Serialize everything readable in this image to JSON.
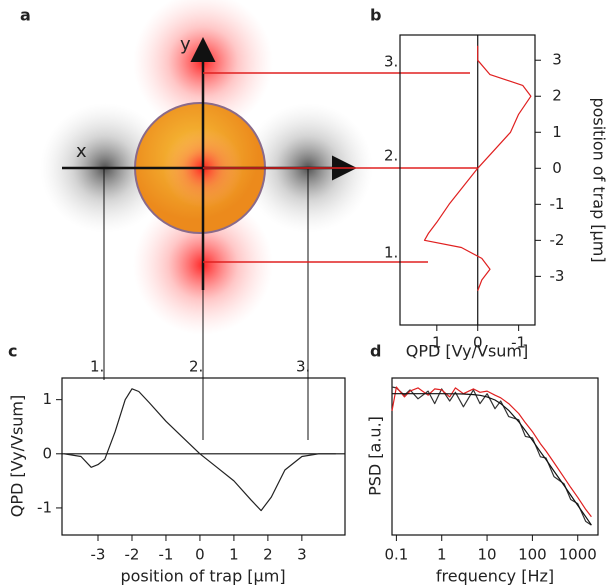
{
  "diagram": {
    "panel_labels": [
      "a",
      "b",
      "c",
      "d"
    ],
    "axis_x": "x",
    "axis_y": "y",
    "markers": [
      "1.",
      "2.",
      "3."
    ]
  },
  "chart_data": [
    {
      "type": "line",
      "orientation": "vertical",
      "x": [
        -3.4,
        -3.1,
        -2.8,
        -2.5,
        -2.2,
        -2.0,
        -1.8,
        -1.5,
        -1.0,
        -0.5,
        0,
        0.5,
        1.0,
        1.5,
        2.0,
        2.3,
        2.6,
        3.0,
        3.4
      ],
      "values": [
        0,
        -0.1,
        -0.3,
        -0.1,
        0.4,
        1.3,
        1.2,
        1.0,
        0.7,
        0.35,
        0,
        -0.4,
        -0.8,
        -1.0,
        -1.3,
        -1.1,
        -0.3,
        0,
        0
      ],
      "color": "#e02020",
      "xlim": [
        -4.35,
        3.7
      ],
      "xticks": [
        -3,
        -2,
        -1,
        0,
        1,
        2,
        3
      ],
      "ylim": [
        1.9,
        -1.4
      ],
      "yticks": [
        1,
        0,
        -1
      ],
      "zero_line": true,
      "xlabel": "position of trap [µm]",
      "ylabel": "QPD [Vy/Vsum]"
    },
    {
      "type": "line",
      "x": [
        -4.0,
        -3.5,
        -3.2,
        -3.0,
        -2.8,
        -2.5,
        -2.2,
        -2.0,
        -1.8,
        -1.5,
        -1.0,
        -0.5,
        0,
        0.5,
        1.0,
        1.5,
        1.8,
        2.1,
        2.5,
        3.0,
        3.5,
        4.0
      ],
      "values": [
        0,
        -0.05,
        -0.25,
        -0.2,
        -0.1,
        0.4,
        1.0,
        1.2,
        1.15,
        0.95,
        0.6,
        0.3,
        0,
        -0.25,
        -0.5,
        -0.85,
        -1.05,
        -0.8,
        -0.3,
        -0.05,
        0,
        0
      ],
      "color": "#222222",
      "xlim": [
        -4.06,
        4.27
      ],
      "xticks": [
        -3,
        -2,
        -1,
        0,
        1,
        2,
        3
      ],
      "ylim": [
        -1.5,
        1.4
      ],
      "yticks": [
        -1,
        0,
        1
      ],
      "zero_line": true,
      "xlabel": "position of trap [µm]",
      "ylabel": "QPD [Vy/Vsum]"
    },
    {
      "type": "line",
      "log_x": true,
      "log_y": true,
      "x": [
        0.08,
        0.1,
        0.15,
        0.2,
        0.3,
        0.5,
        0.7,
        1,
        1.5,
        2,
        3,
        5,
        7,
        10,
        15,
        20,
        30,
        50,
        70,
        100,
        150,
        200,
        300,
        500,
        700,
        1000,
        1500,
        2000
      ],
      "series": [
        {
          "color": "#333333",
          "values": [
            1.6,
            1.5,
            0.9,
            1.3,
            0.7,
            1.2,
            0.5,
            1.4,
            0.6,
            1.1,
            0.4,
            1.3,
            0.5,
            1.0,
            0.35,
            0.6,
            0.2,
            0.16,
            0.05,
            0.045,
            0.012,
            0.011,
            0.003,
            0.0018,
            0.0006,
            0.00045,
            0.00013,
            0.0001
          ]
        },
        {
          "color": "#e02020",
          "values": [
            0.3,
            1.6,
            0.8,
            1.2,
            1.5,
            0.9,
            1.4,
            1.3,
            0.8,
            1.5,
            1.0,
            1.4,
            1.1,
            1.2,
            0.9,
            0.75,
            0.5,
            0.25,
            0.13,
            0.07,
            0.03,
            0.018,
            0.008,
            0.0028,
            0.0014,
            0.0007,
            0.0003,
            0.00018
          ]
        },
        {
          "color": "#111111",
          "values": [
            1,
            1,
            1,
            1,
            1,
            1,
            1,
            1,
            0.99,
            0.99,
            0.98,
            0.94,
            0.89,
            0.8,
            0.64,
            0.5,
            0.31,
            0.14,
            0.075,
            0.038,
            0.017,
            0.0099,
            0.0044,
            0.0016,
            0.00082,
            0.0004,
            0.00018,
            0.0001
          ]
        }
      ],
      "xlim": [
        0.08,
        2800
      ],
      "xticks": [
        0.1,
        1,
        10,
        100,
        1000
      ],
      "ylim": [
        5e-05,
        3
      ],
      "xlabel": "frequency [Hz]",
      "ylabel": "PSD [a.u.]"
    }
  ]
}
